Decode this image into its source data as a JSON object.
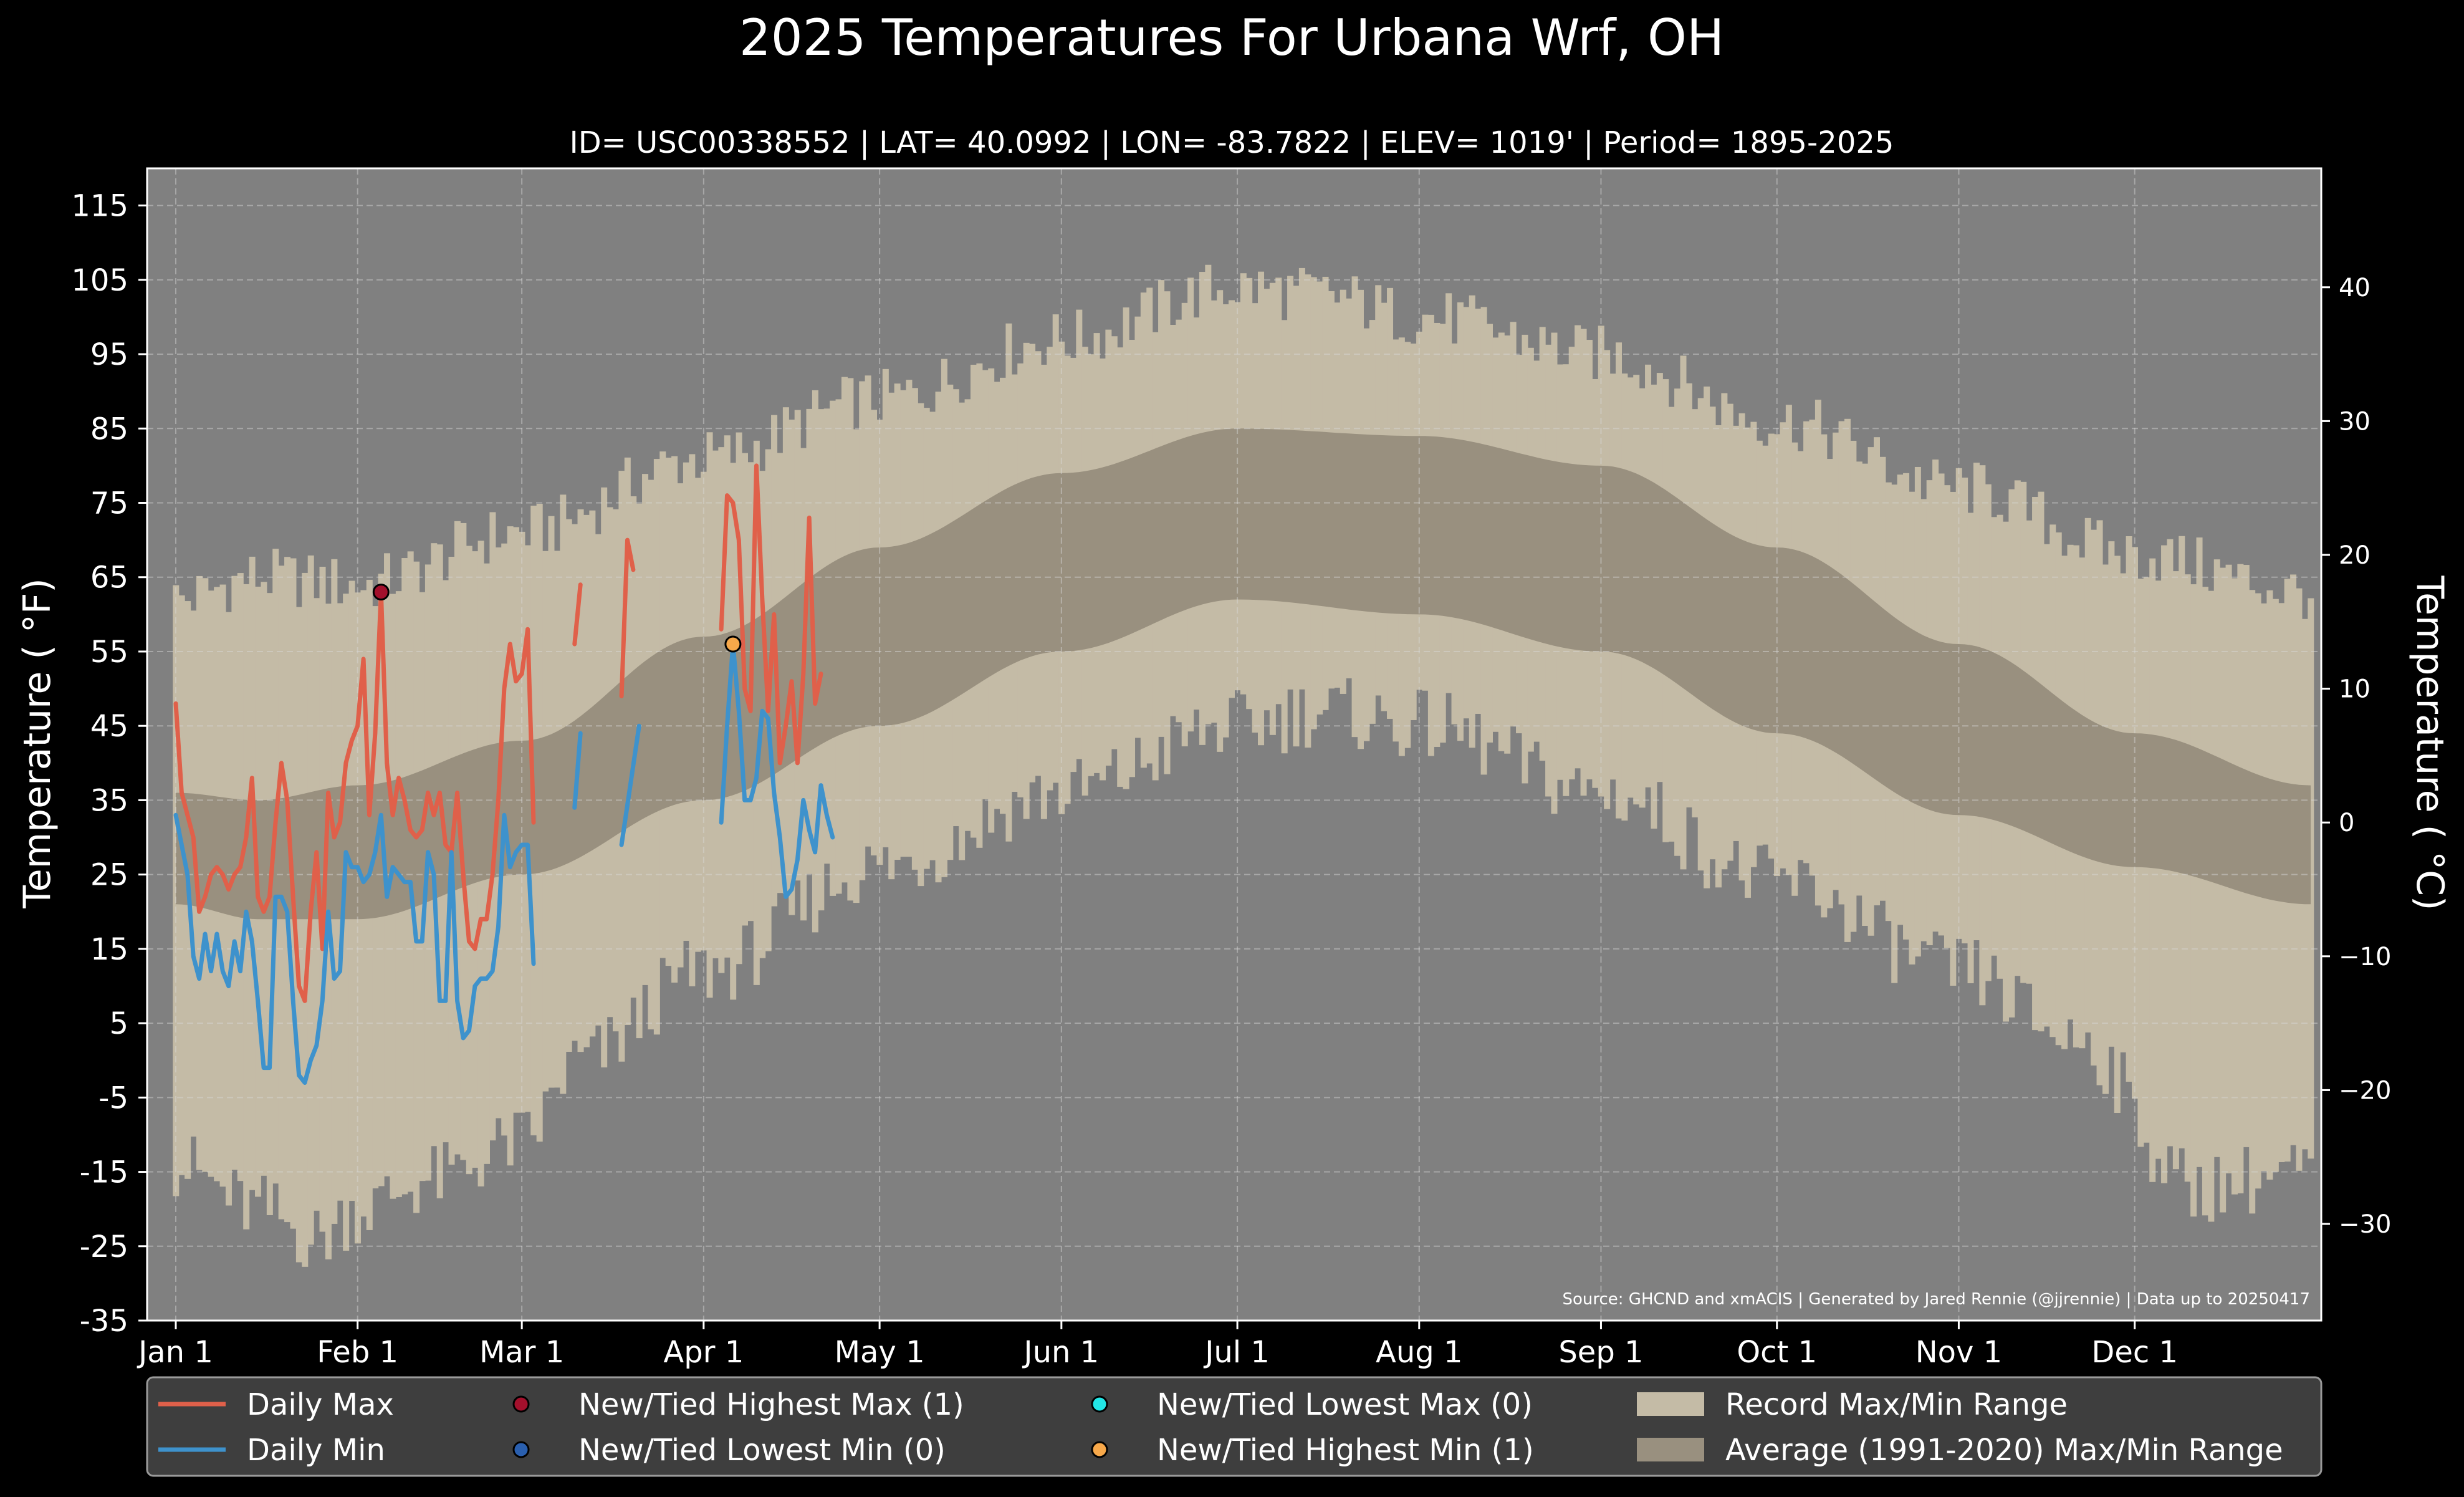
{
  "chart_data": {
    "type": "line",
    "title": "2025 Temperatures For Urbana Wrf, OH",
    "subtitle": "ID= USC00338552 | LAT= 40.0992 | LON= -83.7822 | ELEV= 1019' | Period= 1895-2025",
    "ylabel": "Temperature ($^\\circ$F)",
    "ylabel_display": "Temperature ( °F)",
    "ylabel_right": "Temperature ( °C)",
    "source": "Source: GHCND and xmACIS | Generated by Jared Rennie (@jjrennie) | Data up to 20250417",
    "xlim": [
      1,
      365
    ],
    "ylim": [
      -35,
      120
    ],
    "yticks": [
      -35,
      -25,
      -15,
      -5,
      5,
      15,
      25,
      35,
      45,
      55,
      65,
      75,
      85,
      95,
      105,
      115
    ],
    "yticks_right": [
      -30,
      -20,
      -10,
      0,
      10,
      20,
      30,
      40
    ],
    "xticks": [
      {
        "day": 1,
        "label": "Jan 1"
      },
      {
        "day": 32,
        "label": "Feb 1"
      },
      {
        "day": 60,
        "label": "Mar 1"
      },
      {
        "day": 91,
        "label": "Apr 1"
      },
      {
        "day": 121,
        "label": "May 1"
      },
      {
        "day": 152,
        "label": "Jun 1"
      },
      {
        "day": 182,
        "label": "Jul 1"
      },
      {
        "day": 213,
        "label": "Aug 1"
      },
      {
        "day": 244,
        "label": "Sep 1"
      },
      {
        "day": 274,
        "label": "Oct 1"
      },
      {
        "day": 305,
        "label": "Nov 1"
      },
      {
        "day": 335,
        "label": "Dec 1"
      }
    ],
    "grid": true,
    "legend_position": "bottom",
    "colors": {
      "plot_bg": "#808080",
      "record": "#c4bba6",
      "normal": "#99907f",
      "daily_max": "#e0604a",
      "daily_min": "#3e92cc",
      "high_max": "#a3102c",
      "low_min": "#2a5fae",
      "low_max": "#22e5e5",
      "high_min": "#f7a84a"
    },
    "record_max_anchors": [
      [
        1,
        62
      ],
      [
        15,
        65
      ],
      [
        32,
        64
      ],
      [
        60,
        71
      ],
      [
        91,
        81
      ],
      [
        121,
        89
      ],
      [
        152,
        97
      ],
      [
        182,
        104
      ],
      [
        196,
        103
      ],
      [
        213,
        100
      ],
      [
        244,
        95
      ],
      [
        274,
        86
      ],
      [
        305,
        77
      ],
      [
        335,
        68
      ],
      [
        365,
        63
      ]
    ],
    "record_min_anchors": [
      [
        1,
        -14
      ],
      [
        15,
        -20
      ],
      [
        25,
        -24
      ],
      [
        32,
        -20
      ],
      [
        45,
        -16
      ],
      [
        60,
        -11
      ],
      [
        70,
        0
      ],
      [
        91,
        12
      ],
      [
        121,
        26
      ],
      [
        152,
        36
      ],
      [
        182,
        45
      ],
      [
        196,
        47
      ],
      [
        213,
        45
      ],
      [
        244,
        36
      ],
      [
        274,
        24
      ],
      [
        305,
        12
      ],
      [
        325,
        3
      ],
      [
        345,
        -17
      ],
      [
        365,
        -15
      ]
    ],
    "normal_max_anchors": [
      [
        1,
        36
      ],
      [
        15,
        35
      ],
      [
        32,
        37
      ],
      [
        60,
        43
      ],
      [
        91,
        57
      ],
      [
        121,
        69
      ],
      [
        152,
        79
      ],
      [
        182,
        85
      ],
      [
        213,
        84
      ],
      [
        244,
        80
      ],
      [
        274,
        69
      ],
      [
        305,
        56
      ],
      [
        335,
        44
      ],
      [
        365,
        37
      ]
    ],
    "normal_min_anchors": [
      [
        1,
        21
      ],
      [
        15,
        19
      ],
      [
        32,
        19
      ],
      [
        60,
        25
      ],
      [
        91,
        35
      ],
      [
        121,
        45
      ],
      [
        152,
        55
      ],
      [
        182,
        62
      ],
      [
        213,
        60
      ],
      [
        244,
        55
      ],
      [
        274,
        44
      ],
      [
        305,
        33
      ],
      [
        335,
        26
      ],
      [
        365,
        21
      ]
    ],
    "series": [
      {
        "name": "Daily Max",
        "values": [
          [
            1,
            48
          ],
          [
            2,
            36
          ],
          [
            3,
            33
          ],
          [
            4,
            30
          ],
          [
            5,
            20
          ],
          [
            6,
            22
          ],
          [
            7,
            25
          ],
          [
            8,
            26
          ],
          [
            9,
            25
          ],
          [
            10,
            23
          ],
          [
            11,
            25
          ],
          [
            12,
            26
          ],
          [
            13,
            30
          ],
          [
            14,
            38
          ],
          [
            15,
            22
          ],
          [
            16,
            20
          ],
          [
            17,
            22
          ],
          [
            18,
            32
          ],
          [
            19,
            40
          ],
          [
            20,
            35
          ],
          [
            21,
            22
          ],
          [
            22,
            10
          ],
          [
            23,
            8
          ],
          [
            24,
            20
          ],
          [
            25,
            28
          ],
          [
            26,
            15
          ],
          [
            27,
            36
          ],
          [
            28,
            30
          ],
          [
            29,
            32
          ],
          [
            30,
            40
          ],
          [
            31,
            43
          ],
          [
            32,
            45
          ],
          [
            33,
            54
          ],
          [
            34,
            33
          ],
          [
            35,
            44
          ],
          [
            36,
            63
          ],
          [
            37,
            40
          ],
          [
            38,
            33
          ],
          [
            39,
            38
          ],
          [
            40,
            35
          ],
          [
            41,
            31
          ],
          [
            42,
            30
          ],
          [
            43,
            31
          ],
          [
            44,
            36
          ],
          [
            45,
            33
          ],
          [
            46,
            36
          ],
          [
            47,
            29
          ],
          [
            48,
            28
          ],
          [
            49,
            36
          ],
          [
            50,
            25
          ],
          [
            51,
            16
          ],
          [
            52,
            15
          ],
          [
            53,
            19
          ],
          [
            54,
            19
          ],
          [
            55,
            25
          ],
          [
            56,
            35
          ],
          [
            57,
            50
          ],
          [
            58,
            56
          ],
          [
            59,
            51
          ],
          [
            60,
            52
          ],
          [
            61,
            58
          ],
          [
            62,
            32
          ],
          null,
          [
            69,
            56
          ],
          [
            70,
            64
          ],
          null,
          [
            77,
            49
          ],
          [
            78,
            70
          ],
          [
            79,
            66
          ],
          null,
          [
            94,
            58
          ],
          [
            95,
            76
          ],
          [
            96,
            75
          ],
          [
            97,
            70
          ],
          [
            98,
            50
          ],
          [
            99,
            47
          ],
          [
            100,
            80
          ],
          [
            101,
            62
          ],
          [
            102,
            47
          ],
          [
            103,
            60
          ],
          [
            104,
            40
          ],
          [
            105,
            45
          ],
          [
            106,
            51
          ],
          [
            107,
            40
          ],
          [
            108,
            52
          ],
          [
            109,
            73
          ],
          [
            110,
            48
          ],
          [
            111,
            52
          ]
        ]
      },
      {
        "name": "Daily Min",
        "values": [
          [
            1,
            33
          ],
          [
            2,
            29
          ],
          [
            3,
            25
          ],
          [
            4,
            14
          ],
          [
            5,
            11
          ],
          [
            6,
            17
          ],
          [
            7,
            12
          ],
          [
            8,
            17
          ],
          [
            9,
            12
          ],
          [
            10,
            10
          ],
          [
            11,
            16
          ],
          [
            12,
            12
          ],
          [
            13,
            20
          ],
          [
            14,
            16
          ],
          [
            15,
            8
          ],
          [
            16,
            -1
          ],
          [
            17,
            -1
          ],
          [
            18,
            22
          ],
          [
            19,
            22
          ],
          [
            20,
            20
          ],
          [
            21,
            8
          ],
          [
            22,
            -2
          ],
          [
            23,
            -3
          ],
          [
            24,
            0
          ],
          [
            25,
            2
          ],
          [
            26,
            8
          ],
          [
            27,
            20
          ],
          [
            28,
            11
          ],
          [
            29,
            12
          ],
          [
            30,
            28
          ],
          [
            31,
            26
          ],
          [
            32,
            26
          ],
          [
            33,
            24
          ],
          [
            34,
            25
          ],
          [
            35,
            28
          ],
          [
            36,
            33
          ],
          [
            37,
            22
          ],
          [
            38,
            26
          ],
          [
            39,
            25
          ],
          [
            40,
            24
          ],
          [
            41,
            24
          ],
          [
            42,
            16
          ],
          [
            43,
            16
          ],
          [
            44,
            28
          ],
          [
            45,
            25
          ],
          [
            46,
            8
          ],
          [
            47,
            8
          ],
          [
            48,
            28
          ],
          [
            49,
            8
          ],
          [
            50,
            3
          ],
          [
            51,
            4
          ],
          [
            52,
            10
          ],
          [
            53,
            11
          ],
          [
            54,
            11
          ],
          [
            55,
            12
          ],
          [
            56,
            18
          ],
          [
            57,
            33
          ],
          [
            58,
            26
          ],
          [
            59,
            28
          ],
          [
            60,
            29
          ],
          [
            61,
            29
          ],
          [
            62,
            13
          ],
          null,
          [
            69,
            34
          ],
          [
            70,
            44
          ],
          null,
          [
            77,
            29
          ],
          [
            80,
            45
          ],
          null,
          [
            94,
            32
          ],
          [
            95,
            45
          ],
          [
            96,
            56
          ],
          [
            97,
            47
          ],
          [
            98,
            35
          ],
          [
            99,
            35
          ],
          [
            100,
            38
          ],
          [
            101,
            47
          ],
          [
            102,
            46
          ],
          [
            103,
            36
          ],
          [
            104,
            30
          ],
          [
            105,
            22
          ],
          [
            106,
            23
          ],
          [
            107,
            27
          ],
          [
            108,
            35
          ],
          [
            109,
            31
          ],
          [
            110,
            28
          ],
          [
            111,
            37
          ],
          [
            112,
            33
          ],
          [
            113,
            30
          ]
        ]
      }
    ],
    "markers": [
      {
        "name": "New/Tied Highest Max (1)",
        "day": 36,
        "value": 63,
        "color": "#a3102c"
      },
      {
        "name": "New/Tied Highest Min (1)",
        "day": 96,
        "value": 56,
        "color": "#f7a84a"
      }
    ],
    "legend": [
      {
        "label": "Daily Max",
        "kind": "line",
        "color": "#e0604a"
      },
      {
        "label": "Daily Min",
        "kind": "line",
        "color": "#3e92cc"
      },
      {
        "label": "New/Tied Highest Max (1)",
        "kind": "dot",
        "color": "#a3102c"
      },
      {
        "label": "New/Tied Lowest Min (0)",
        "kind": "dot",
        "color": "#2a5fae"
      },
      {
        "label": "New/Tied Lowest Max (0)",
        "kind": "dot",
        "color": "#22e5e5"
      },
      {
        "label": "New/Tied Highest Min (1)",
        "kind": "dot",
        "color": "#f7a84a"
      },
      {
        "label": "Record Max/Min Range",
        "kind": "patch",
        "color": "#c4bba6"
      },
      {
        "label": "Average (1991-2020) Max/Min Range",
        "kind": "patch",
        "color": "#99907f"
      }
    ]
  }
}
